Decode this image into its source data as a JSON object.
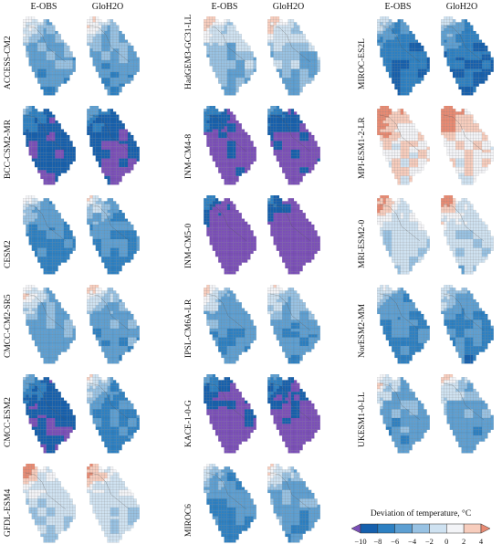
{
  "column_headers": [
    "E-OBS",
    "GloH2O",
    "E-OBS",
    "GloH2O",
    "E-OBS",
    "GloH2O"
  ],
  "models": [
    {
      "name": "ACCESS-CM2",
      "col": 0,
      "row": 0,
      "eobs": -3,
      "gloh2o": -3
    },
    {
      "name": "BCC-CSM2-MR",
      "col": 0,
      "row": 1,
      "eobs": -7,
      "gloh2o": -7
    },
    {
      "name": "CESM2",
      "col": 0,
      "row": 2,
      "eobs": -4,
      "gloh2o": -4
    },
    {
      "name": "CMCC-CM2-SR5",
      "col": 0,
      "row": 3,
      "eobs": -3,
      "gloh2o": -3
    },
    {
      "name": "CMCC-ESM2",
      "col": 0,
      "row": 4,
      "eobs": -7,
      "gloh2o": -4
    },
    {
      "name": "GFDL-ESM4",
      "col": 0,
      "row": 5,
      "eobs": -1,
      "gloh2o": -1
    },
    {
      "name": "HadGEM3-GC31-LL",
      "col": 1,
      "row": 0,
      "eobs": -2,
      "gloh2o": -2
    },
    {
      "name": "INM-CM4-8",
      "col": 1,
      "row": 1,
      "eobs": -8,
      "gloh2o": -8
    },
    {
      "name": "INM-CM5-0",
      "col": 1,
      "row": 2,
      "eobs": -9,
      "gloh2o": -9
    },
    {
      "name": "IPSL-CM6A-LR",
      "col": 1,
      "row": 3,
      "eobs": -3,
      "gloh2o": -3
    },
    {
      "name": "KACE-1-0-G",
      "col": 1,
      "row": 4,
      "eobs": -8,
      "gloh2o": -8
    },
    {
      "name": "MIROC6",
      "col": 1,
      "row": 5,
      "eobs": -4,
      "gloh2o": -3
    },
    {
      "name": "MIROC-ES2L",
      "col": 2,
      "row": 0,
      "eobs": -5,
      "gloh2o": -5
    },
    {
      "name": "MPI-ESM1-2-LR",
      "col": 2,
      "row": 1,
      "eobs": 1,
      "gloh2o": 1
    },
    {
      "name": "MRI-ESM2-0",
      "col": 2,
      "row": 2,
      "eobs": -1,
      "gloh2o": -1
    },
    {
      "name": "NorESM2-MM",
      "col": 2,
      "row": 3,
      "eobs": -4,
      "gloh2o": -4
    },
    {
      "name": "UKESM1-0-LL",
      "col": 2,
      "row": 4,
      "eobs": -3,
      "gloh2o": -3
    }
  ],
  "legend": {
    "title": "Deviation of temperature, °C",
    "ticks": [
      "−10",
      "−8",
      "−6",
      "−4",
      "−2",
      "0",
      "2",
      "4"
    ],
    "colors": [
      "#7b4fb8",
      "#1660ad",
      "#2d80c2",
      "#5d9fd2",
      "#98c2e3",
      "#cfe2f1",
      "#f3f4f7",
      "#f7cdbd",
      "#e88a72"
    ]
  }
}
